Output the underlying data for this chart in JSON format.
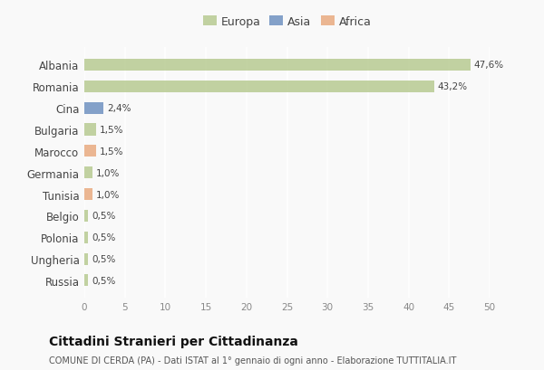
{
  "categories": [
    "Albania",
    "Romania",
    "Cina",
    "Bulgaria",
    "Marocco",
    "Germania",
    "Tunisia",
    "Belgio",
    "Polonia",
    "Ungheria",
    "Russia"
  ],
  "values": [
    47.6,
    43.2,
    2.4,
    1.5,
    1.5,
    1.0,
    1.0,
    0.5,
    0.5,
    0.5,
    0.5
  ],
  "labels": [
    "47,6%",
    "43,2%",
    "2,4%",
    "1,5%",
    "1,5%",
    "1,0%",
    "1,0%",
    "0,5%",
    "0,5%",
    "0,5%",
    "0,5%"
  ],
  "colors": [
    "#b5c98e",
    "#b5c98e",
    "#6a8ebf",
    "#b5c98e",
    "#e8a87c",
    "#b5c98e",
    "#e8a87c",
    "#b5c98e",
    "#b5c98e",
    "#b5c98e",
    "#b5c98e"
  ],
  "legend_labels": [
    "Europa",
    "Asia",
    "Africa"
  ],
  "legend_colors": [
    "#b5c98e",
    "#6a8ebf",
    "#e8a87c"
  ],
  "title": "Cittadini Stranieri per Cittadinanza",
  "subtitle": "COMUNE DI CERDA (PA) - Dati ISTAT al 1° gennaio di ogni anno - Elaborazione TUTTITALIA.IT",
  "xlim": [
    0,
    50
  ],
  "xticks": [
    0,
    5,
    10,
    15,
    20,
    25,
    30,
    35,
    40,
    45,
    50
  ],
  "background_color": "#f9f9f9",
  "grid_color": "#ffffff"
}
